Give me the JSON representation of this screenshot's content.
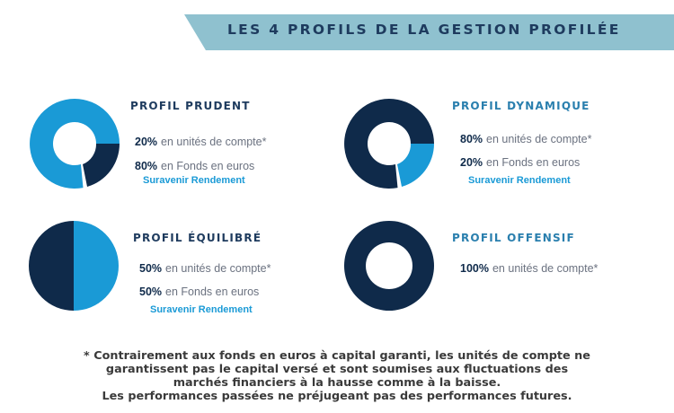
{
  "banner": {
    "title": "LES 4 PROFILS DE LA GESTION PROFILÉE"
  },
  "colors": {
    "dark": "#0f2a4a",
    "light": "#1a9ad6",
    "banner": "#8fc1cf",
    "title_dark": "#1e3b5e",
    "title_blue": "#2a7fae"
  },
  "profiles": [
    {
      "title": "PROFIL PRUDENT",
      "rows": [
        {
          "pct": "20%",
          "label": "en unités de compte*"
        },
        {
          "pct": "80%",
          "label": "en Fonds en euros"
        }
      ],
      "link": "Suravenir Rendement",
      "chart_icon": "gauge-circle-light"
    },
    {
      "title": "PROFIL DYNAMIQUE",
      "rows": [
        {
          "pct": "80%",
          "label": "en unités de compte*"
        },
        {
          "pct": "20%",
          "label": "en Fonds en euros"
        }
      ],
      "link": "Suravenir Rendement",
      "chart_icon": "gauge-circle-dark"
    },
    {
      "title": "PROFIL ÉQUILIBRÉ",
      "rows": [
        {
          "pct": "50%",
          "label": "en unités de compte*"
        },
        {
          "pct": "50%",
          "label": "en Fonds en euros"
        }
      ],
      "link": "Suravenir Rendement",
      "chart_icon": "half-pie"
    },
    {
      "title": "PROFIL OFFENSIF",
      "rows": [
        {
          "pct": "100%",
          "label": "en unités de compte*"
        }
      ],
      "link": "",
      "chart_icon": "full-ring"
    }
  ],
  "footnote": {
    "lines": [
      "* Contrairement aux fonds en euros à capital garanti, les unités de compte ne",
      "garantissent pas le capital versé et sont soumises aux fluctuations des",
      "marchés financiers à la hausse comme à la baisse.",
      "Les performances passées ne préjugeant pas des performances futures."
    ]
  }
}
